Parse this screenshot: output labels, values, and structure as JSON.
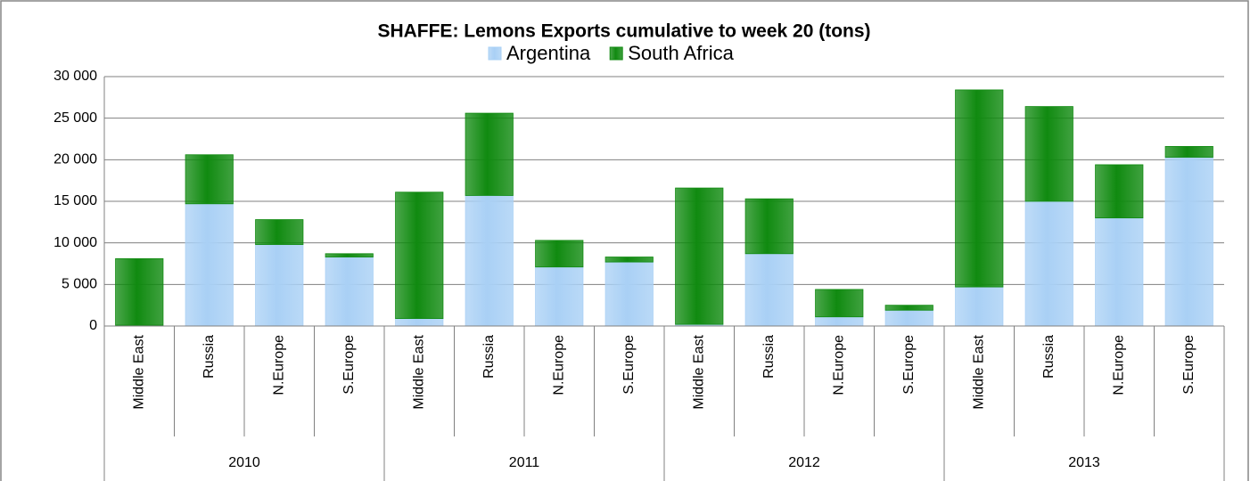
{
  "chart_data": {
    "type": "stacked-bar",
    "title": "SHAFFE: Lemons Exports cumulative to week 20 (tons)",
    "groups": [
      {
        "name": "2010",
        "categories": [
          "Middle East",
          "Russia",
          "N.Europe",
          "S.Europe"
        ]
      },
      {
        "name": "2011",
        "categories": [
          "Middle East",
          "Russia",
          "N.Europe",
          "S.Europe"
        ]
      },
      {
        "name": "2012",
        "categories": [
          "Middle East",
          "Russia",
          "N.Europe",
          "S.Europe"
        ]
      },
      {
        "name": "2013",
        "categories": [
          "Middle East",
          "Russia",
          "N.Europe",
          "S.Europe"
        ]
      }
    ],
    "series": [
      {
        "name": "Argentina",
        "color": "#a9d0f5",
        "values": [
          100,
          14700,
          9800,
          8300,
          900,
          15700,
          7100,
          7700,
          200,
          8700,
          1100,
          1900,
          4700,
          15000,
          13000,
          20300
        ]
      },
      {
        "name": "South Africa",
        "color": "#108a10",
        "values": [
          8000,
          5900,
          3000,
          400,
          15200,
          9900,
          3200,
          600,
          16400,
          6600,
          3300,
          600,
          23700,
          11400,
          6400,
          1300
        ]
      }
    ],
    "ylim": [
      0,
      30000
    ],
    "yticks": [
      0,
      {
        "value": 5000,
        "label": "5 000"
      },
      {
        "value": 10000,
        "label": "10 000"
      },
      {
        "value": 15000,
        "label": "15 000"
      },
      {
        "value": 20000,
        "label": "20 000"
      },
      {
        "value": 25000,
        "label": "25 000"
      },
      {
        "value": 30000,
        "label": "30 000"
      }
    ],
    "grid": true,
    "legend": "top"
  }
}
